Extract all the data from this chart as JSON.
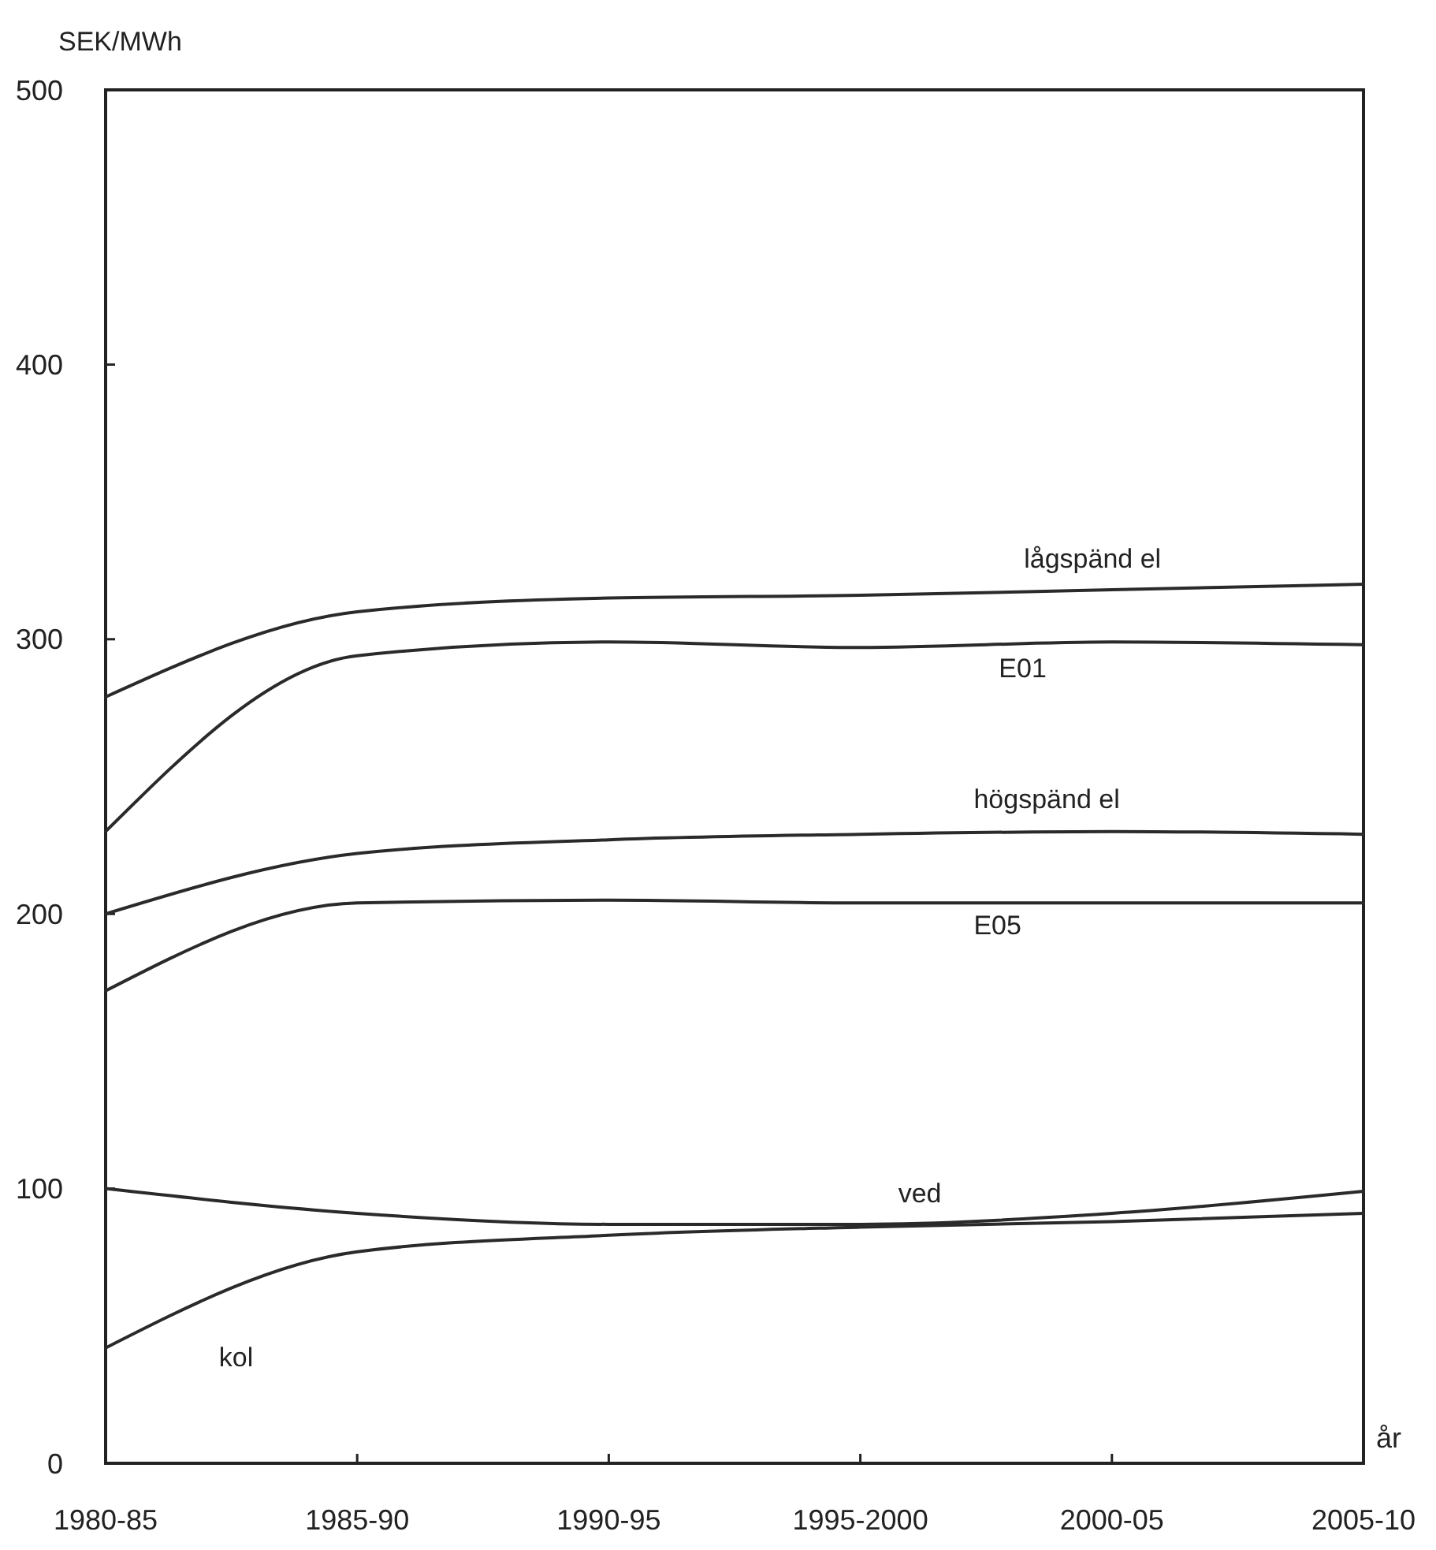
{
  "chart_data": {
    "type": "line",
    "xlabel": "år",
    "ylabel": "SEK/MWh",
    "categories": [
      "1980-85",
      "1985-90",
      "1990-95",
      "1995-2000",
      "2000-05",
      "2005-10"
    ],
    "ylim": [
      0,
      500
    ],
    "yticks": [
      0,
      100,
      200,
      300,
      400,
      500
    ],
    "grid": false,
    "legend": false,
    "marker": "none",
    "line_style": "solid",
    "series": [
      {
        "name": "lågspänd el",
        "color": "#2a2a2a",
        "values": [
          279,
          310,
          315,
          316,
          318,
          320
        ]
      },
      {
        "name": "E01",
        "color": "#2a2a2a",
        "values": [
          230,
          294,
          299,
          297,
          299,
          298
        ]
      },
      {
        "name": "högspänd el",
        "color": "#2a2a2a",
        "values": [
          200,
          222,
          227,
          229,
          230,
          229
        ]
      },
      {
        "name": "E05",
        "color": "#2a2a2a",
        "values": [
          172,
          204,
          205,
          204,
          204,
          204
        ]
      },
      {
        "name": "ved",
        "color": "#2a2a2a",
        "values": [
          100,
          91,
          87,
          87,
          91,
          99
        ]
      },
      {
        "name": "kol",
        "color": "#2a2a2a",
        "values": [
          42,
          77,
          83,
          86,
          88,
          91
        ]
      }
    ]
  }
}
